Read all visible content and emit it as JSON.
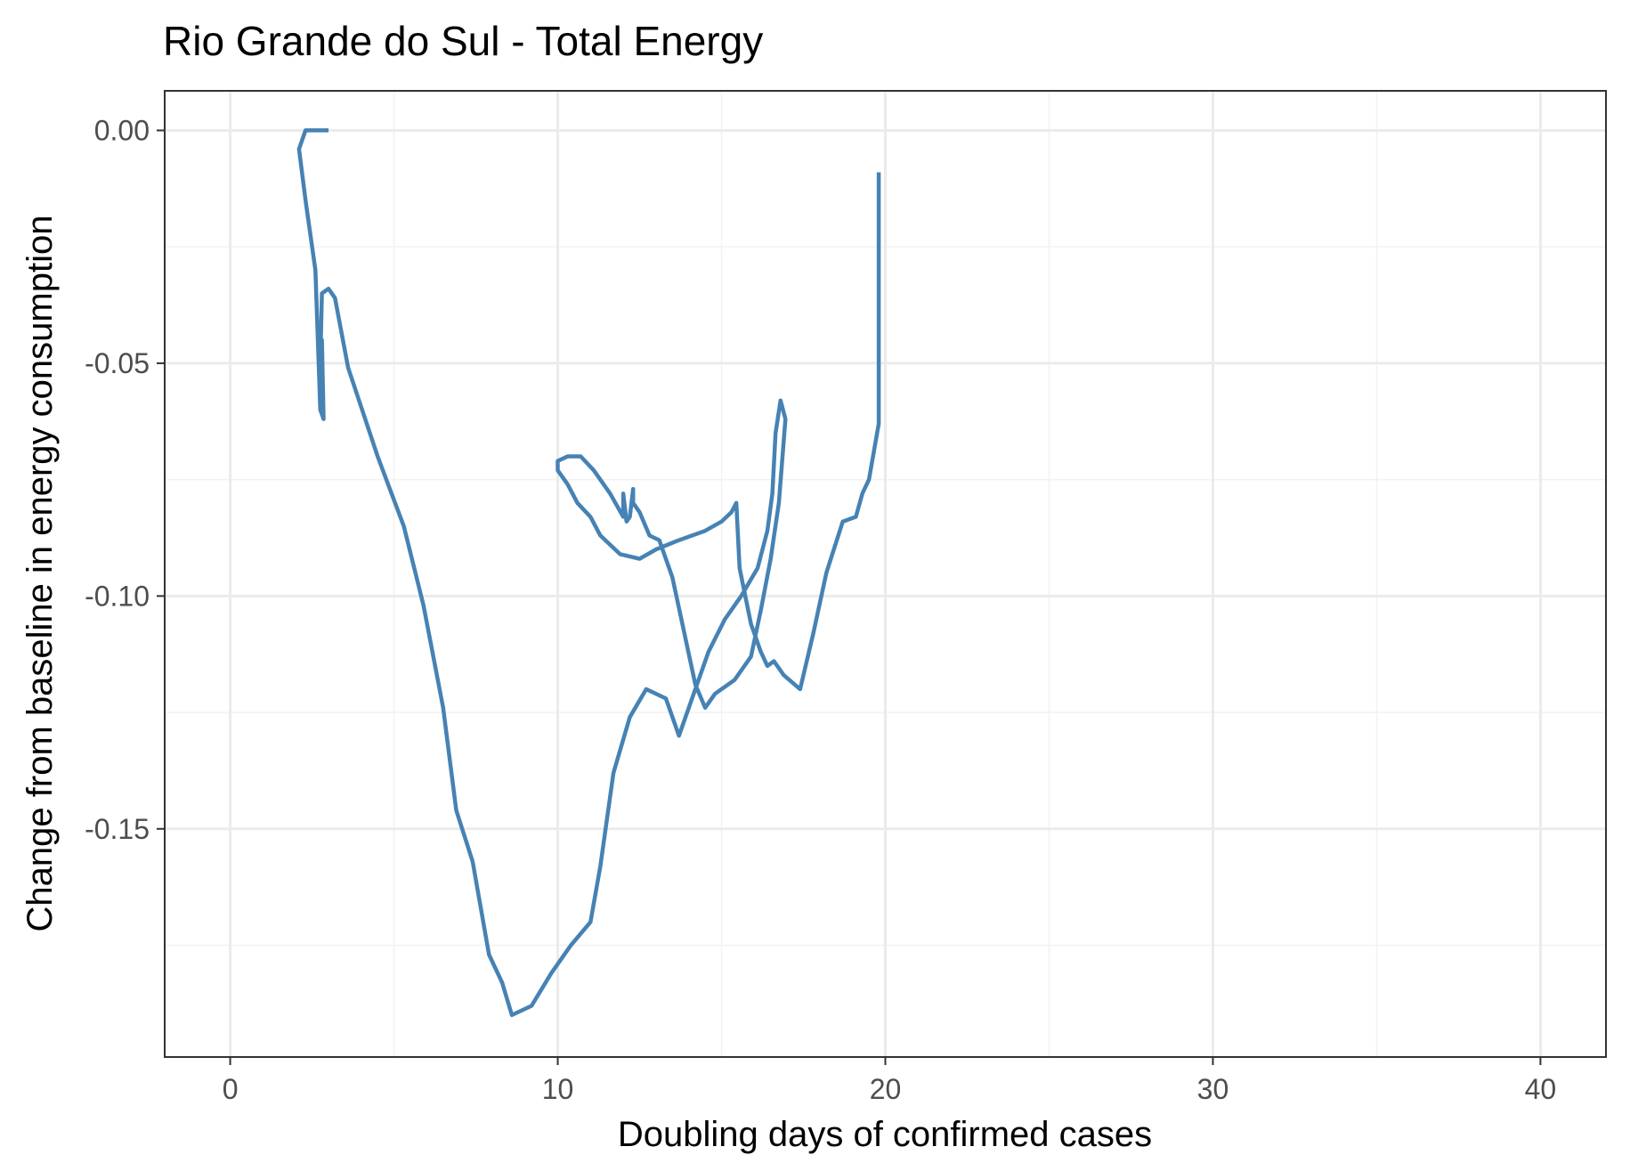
{
  "chart_data": {
    "type": "line",
    "title": "Rio Grande do Sul - Total Energy",
    "xlabel": "Doubling days of confirmed cases",
    "ylabel": "Change from baseline in energy consumption",
    "xlim": [
      -2,
      42
    ],
    "ylim": [
      -0.199,
      0.0085
    ],
    "x_ticks": [
      0,
      10,
      20,
      30,
      40
    ],
    "x_tick_labels": [
      "0",
      "10",
      "20",
      "30",
      "40"
    ],
    "y_ticks": [
      0.0,
      -0.05,
      -0.1,
      -0.15
    ],
    "y_tick_labels": [
      "0.00",
      "-0.05",
      "-0.10",
      "-0.15"
    ],
    "grid": true,
    "legend": "none",
    "series": [
      {
        "color": "#4682B4",
        "points": [
          [
            3.0,
            0.0
          ],
          [
            2.3,
            0.0
          ],
          [
            2.1,
            -0.004
          ],
          [
            2.3,
            -0.015
          ],
          [
            2.6,
            -0.03
          ],
          [
            2.75,
            -0.06
          ],
          [
            2.85,
            -0.062
          ],
          [
            2.8,
            -0.045
          ],
          [
            2.75,
            -0.05
          ],
          [
            2.8,
            -0.035
          ],
          [
            3.0,
            -0.034
          ],
          [
            3.2,
            -0.036
          ],
          [
            3.6,
            -0.051
          ],
          [
            4.5,
            -0.07
          ],
          [
            5.3,
            -0.085
          ],
          [
            5.9,
            -0.102
          ],
          [
            6.5,
            -0.124
          ],
          [
            6.9,
            -0.146
          ],
          [
            7.4,
            -0.157
          ],
          [
            7.9,
            -0.177
          ],
          [
            8.3,
            -0.183
          ],
          [
            8.6,
            -0.19
          ],
          [
            9.2,
            -0.188
          ],
          [
            9.8,
            -0.181
          ],
          [
            10.4,
            -0.175
          ],
          [
            11.0,
            -0.17
          ],
          [
            11.3,
            -0.158
          ],
          [
            11.7,
            -0.138
          ],
          [
            12.2,
            -0.126
          ],
          [
            12.7,
            -0.12
          ],
          [
            13.3,
            -0.122
          ],
          [
            13.7,
            -0.13
          ],
          [
            14.1,
            -0.122
          ],
          [
            14.6,
            -0.112
          ],
          [
            15.1,
            -0.105
          ],
          [
            15.6,
            -0.1
          ],
          [
            16.1,
            -0.094
          ],
          [
            16.4,
            -0.086
          ],
          [
            16.55,
            -0.078
          ],
          [
            16.65,
            -0.065
          ],
          [
            16.8,
            -0.058
          ],
          [
            16.95,
            -0.062
          ],
          [
            16.75,
            -0.08
          ],
          [
            16.5,
            -0.092
          ],
          [
            16.2,
            -0.103
          ],
          [
            15.9,
            -0.113
          ],
          [
            15.4,
            -0.118
          ],
          [
            14.8,
            -0.121
          ],
          [
            14.5,
            -0.124
          ],
          [
            14.2,
            -0.119
          ],
          [
            13.5,
            -0.096
          ],
          [
            13.1,
            -0.088
          ],
          [
            12.8,
            -0.087
          ],
          [
            12.5,
            -0.082
          ],
          [
            12.3,
            -0.08
          ],
          [
            12.3,
            -0.077
          ],
          [
            12.2,
            -0.083
          ],
          [
            12.1,
            -0.084
          ],
          [
            12.0,
            -0.078
          ],
          [
            12.0,
            -0.083
          ],
          [
            11.6,
            -0.078
          ],
          [
            11.1,
            -0.073
          ],
          [
            10.7,
            -0.07
          ],
          [
            10.3,
            -0.07
          ],
          [
            10.0,
            -0.071
          ],
          [
            10.0,
            -0.073
          ],
          [
            10.3,
            -0.076
          ],
          [
            10.6,
            -0.08
          ],
          [
            11.0,
            -0.083
          ],
          [
            11.3,
            -0.087
          ],
          [
            11.9,
            -0.091
          ],
          [
            12.5,
            -0.092
          ],
          [
            13.0,
            -0.09
          ],
          [
            13.7,
            -0.088
          ],
          [
            14.5,
            -0.086
          ],
          [
            15.0,
            -0.084
          ],
          [
            15.3,
            -0.082
          ],
          [
            15.45,
            -0.08
          ],
          [
            15.55,
            -0.094
          ],
          [
            15.9,
            -0.106
          ],
          [
            16.2,
            -0.112
          ],
          [
            16.4,
            -0.115
          ],
          [
            16.6,
            -0.114
          ],
          [
            16.9,
            -0.117
          ],
          [
            17.4,
            -0.12
          ],
          [
            17.8,
            -0.108
          ],
          [
            18.2,
            -0.095
          ],
          [
            18.7,
            -0.084
          ],
          [
            19.1,
            -0.083
          ],
          [
            19.3,
            -0.078
          ],
          [
            19.5,
            -0.075
          ],
          [
            19.8,
            -0.063
          ],
          [
            19.8,
            -0.009
          ]
        ]
      }
    ]
  }
}
